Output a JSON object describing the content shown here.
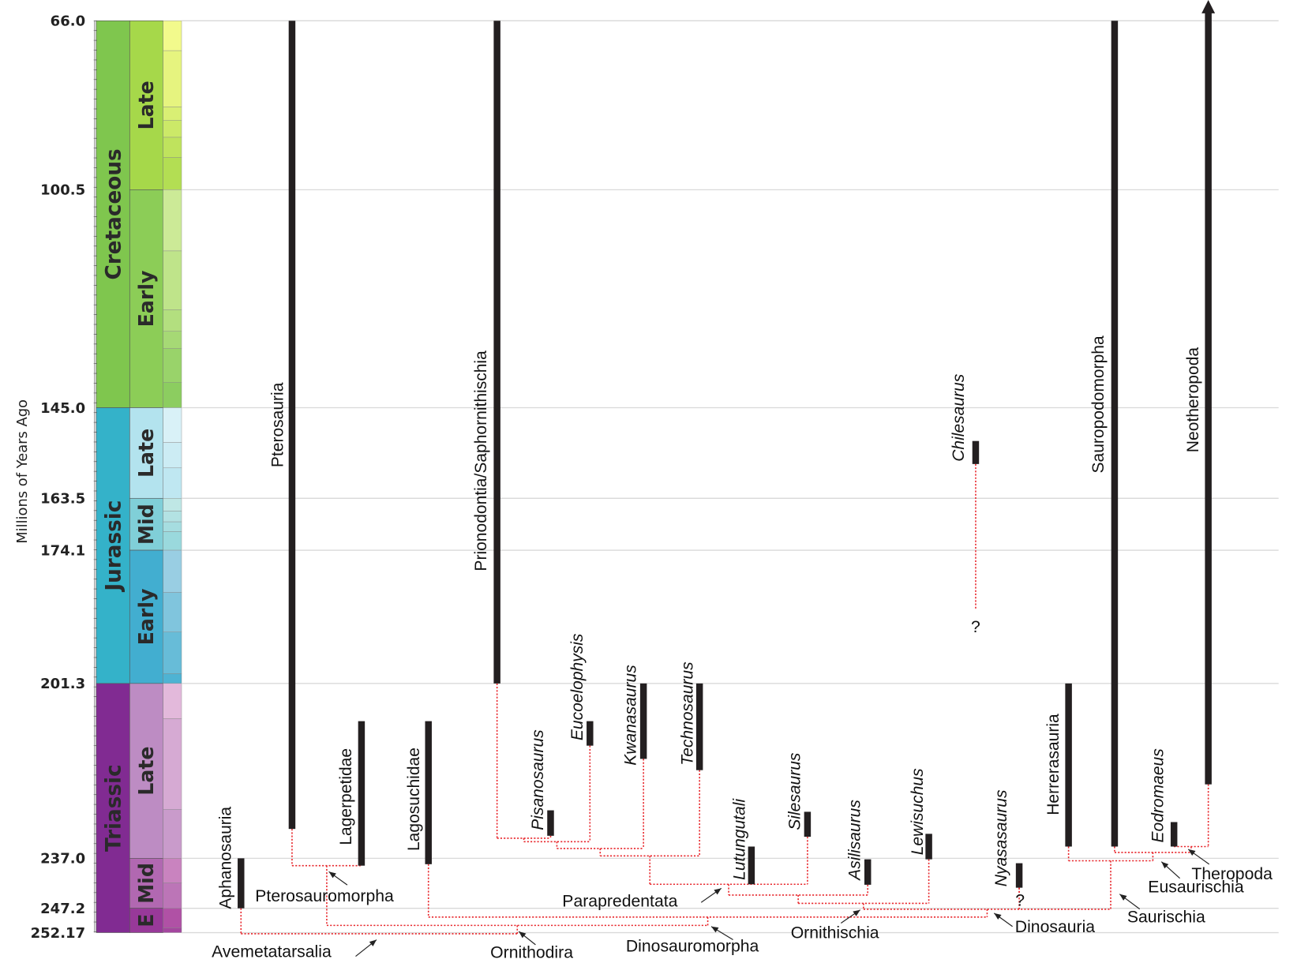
{
  "chart_data": {
    "type": "time-calibrated phylogeny",
    "ylabel": "Millions of Years Ago",
    "yticks": [
      "66.0",
      "100.5",
      "145.0",
      "163.5",
      "174.1",
      "201.3",
      "237.0",
      "247.2",
      "252.17"
    ],
    "ytick_values": [
      66.0,
      100.5,
      145.0,
      163.5,
      174.1,
      201.3,
      237.0,
      247.2,
      252.17
    ],
    "ylim": [
      66.0,
      252.17
    ],
    "grid": true,
    "colors": {
      "range_bar": "#231f20",
      "tree_line": "#e8262b",
      "grid": "#d9d9d9"
    },
    "timescale": {
      "periods": [
        {
          "label": "Cretaceous",
          "start": 145.0,
          "end": 66.0,
          "color": "#7FC64E"
        },
        {
          "label": "Jurassic",
          "start": 201.3,
          "end": 145.0,
          "color": "#34B2C9"
        },
        {
          "label": "Triassic",
          "start": 252.17,
          "end": 201.3,
          "color": "#812B92"
        }
      ],
      "epochs": [
        {
          "label": "Late",
          "start": 100.5,
          "end": 66.0,
          "color": "#A6D84A"
        },
        {
          "label": "Early",
          "start": 145.0,
          "end": 100.5,
          "color": "#8CCD57"
        },
        {
          "label": "Late",
          "start": 163.5,
          "end": 145.0,
          "color": "#B3E3EE"
        },
        {
          "label": "Mid",
          "start": 174.1,
          "end": 163.5,
          "color": "#80CFD8"
        },
        {
          "label": "Early",
          "start": 201.3,
          "end": 174.1,
          "color": "#42AED0"
        },
        {
          "label": "Late",
          "start": 237.0,
          "end": 201.3,
          "color": "#BD8CC3"
        },
        {
          "label": "Mid",
          "start": 247.2,
          "end": 237.0,
          "color": "#B168B1"
        },
        {
          "label": "E",
          "start": 252.17,
          "end": 247.2,
          "color": "#983999"
        }
      ],
      "stages": [
        {
          "start": 72.1,
          "end": 66.0,
          "color": "#F2FA8C"
        },
        {
          "start": 83.6,
          "end": 72.1,
          "color": "#E6F47F"
        },
        {
          "start": 86.3,
          "end": 83.6,
          "color": "#D9EF74"
        },
        {
          "start": 89.8,
          "end": 86.3,
          "color": "#CCE968"
        },
        {
          "start": 93.9,
          "end": 89.8,
          "color": "#BFE35D"
        },
        {
          "start": 100.5,
          "end": 93.9,
          "color": "#B3DE53"
        },
        {
          "start": 113.0,
          "end": 100.5,
          "color": "#CCEA97"
        },
        {
          "start": 125.0,
          "end": 113.0,
          "color": "#BFE48A"
        },
        {
          "start": 129.4,
          "end": 125.0,
          "color": "#B3DF7F"
        },
        {
          "start": 132.9,
          "end": 129.4,
          "color": "#A6D975"
        },
        {
          "start": 139.8,
          "end": 132.9,
          "color": "#99D36A"
        },
        {
          "start": 145.0,
          "end": 139.8,
          "color": "#8CCD60"
        },
        {
          "start": 152.1,
          "end": 145.0,
          "color": "#D9F1F7"
        },
        {
          "start": 157.3,
          "end": 152.1,
          "color": "#CCECF4"
        },
        {
          "start": 163.5,
          "end": 157.3,
          "color": "#BFE7F1"
        },
        {
          "start": 166.1,
          "end": 163.5,
          "color": "#BFE7E5"
        },
        {
          "start": 168.3,
          "end": 166.1,
          "color": "#B3E2E3"
        },
        {
          "start": 170.3,
          "end": 168.3,
          "color": "#A6DDE0"
        },
        {
          "start": 174.1,
          "end": 170.3,
          "color": "#9AD9DD"
        },
        {
          "start": 182.7,
          "end": 174.1,
          "color": "#99CEE3"
        },
        {
          "start": 190.8,
          "end": 182.7,
          "color": "#80C5DD"
        },
        {
          "start": 199.3,
          "end": 190.8,
          "color": "#67BCD8"
        },
        {
          "start": 201.3,
          "end": 199.3,
          "color": "#4EB3D3"
        },
        {
          "start": 208.5,
          "end": 201.3,
          "color": "#E3B9DB"
        },
        {
          "start": 227.0,
          "end": 208.5,
          "color": "#D6AAD3"
        },
        {
          "start": 237.0,
          "end": 227.0,
          "color": "#C99BCB"
        },
        {
          "start": 242.0,
          "end": 237.0,
          "color": "#C983BF"
        },
        {
          "start": 247.2,
          "end": 242.0,
          "color": "#BC75B7"
        },
        {
          "start": 251.2,
          "end": 247.2,
          "color": "#B051A5"
        },
        {
          "start": 252.17,
          "end": 251.2,
          "color": "#A4469F"
        }
      ]
    },
    "taxa": [
      {
        "id": "aphanosauria",
        "name": "Aphanosauria",
        "italic": false,
        "range": [
          247.2,
          237.0
        ]
      },
      {
        "id": "pterosauria",
        "name": "Pterosauria",
        "italic": false,
        "range": [
          231.0,
          66.0
        ]
      },
      {
        "id": "lagerpetidae",
        "name": "Lagerpetidae",
        "italic": false,
        "range": [
          238.5,
          209.0
        ]
      },
      {
        "id": "lagosuchidae",
        "name": "Lagosuchidae",
        "italic": false,
        "range": [
          238.2,
          209.0
        ]
      },
      {
        "id": "prionodontia",
        "name": "Prionodontia/Saphornithischia",
        "italic": false,
        "range": [
          201.3,
          66.0
        ]
      },
      {
        "id": "pisanosaurus",
        "name": "Pisanosaurus",
        "italic": true,
        "range": [
          232.4,
          227.2
        ]
      },
      {
        "id": "eucoelophysis",
        "name": "Eucoelophysis",
        "italic": true,
        "range": [
          214.0,
          209.0
        ]
      },
      {
        "id": "kwanasaurus",
        "name": "Kwanasaurus",
        "italic": true,
        "range": [
          216.7,
          201.3
        ]
      },
      {
        "id": "technosaurus",
        "name": "Technosaurus",
        "italic": true,
        "range": [
          219.0,
          201.3
        ]
      },
      {
        "id": "lutungutali",
        "name": "Lutungutali",
        "italic": true,
        "range": [
          242.3,
          234.6
        ]
      },
      {
        "id": "silesaurus",
        "name": "Silesaurus",
        "italic": true,
        "range": [
          232.6,
          227.5
        ]
      },
      {
        "id": "asilisaurus",
        "name": "Asilisaurus",
        "italic": true,
        "range": [
          242.4,
          237.2
        ]
      },
      {
        "id": "lewisuchus",
        "name": "Lewisuchus",
        "italic": true,
        "range": [
          237.2,
          232.0
        ]
      },
      {
        "id": "chilesaurus",
        "name": "Chilesaurus",
        "italic": true,
        "range": [
          156.5,
          151.8
        ],
        "uncertain_extension_to": 186.3,
        "question": "?"
      },
      {
        "id": "nyasasaurus",
        "name": "Nyasasaurus",
        "italic": true,
        "range": [
          243.0,
          238.0
        ],
        "question": "?"
      },
      {
        "id": "herrerasauria",
        "name": "Herrerasauria",
        "italic": false,
        "range": [
          234.6,
          201.3
        ]
      },
      {
        "id": "sauropodomorpha",
        "name": "Sauropodomorpha",
        "italic": false,
        "range": [
          234.6,
          66.0
        ]
      },
      {
        "id": "eodromaeus",
        "name": "Eodromaeus",
        "italic": true,
        "range": [
          234.6,
          229.6
        ]
      },
      {
        "id": "neotheropoda",
        "name": "Neotheropoda",
        "italic": false,
        "range": [
          221.9,
          66.0
        ],
        "extends_to_present": true
      }
    ],
    "nodes": [
      {
        "id": "n1",
        "name": "",
        "age": 232.9,
        "children": [
          "prionodontia",
          "pisanosaurus"
        ]
      },
      {
        "id": "n2",
        "name": "",
        "age": 233.6,
        "children": [
          "n1",
          "eucoelophysis"
        ]
      },
      {
        "id": "n3",
        "name": "",
        "age": 235.0,
        "children": [
          "n2",
          "kwanasaurus"
        ]
      },
      {
        "id": "n4",
        "name": "",
        "age": 236.5,
        "children": [
          "n3",
          "technosaurus"
        ]
      },
      {
        "id": "parapredentata",
        "name": "Parapredentata",
        "age": 242.3,
        "children": [
          "n4",
          "lutungutali",
          "silesaurus"
        ]
      },
      {
        "id": "n6",
        "name": "",
        "age": 244.5,
        "children": [
          "parapredentata",
          "asilisaurus"
        ]
      },
      {
        "id": "ornithischia",
        "name": "Ornithischia",
        "age": 246.2,
        "children": [
          "n6",
          "lewisuchus"
        ]
      },
      {
        "id": "theropoda",
        "name": "Theropoda",
        "age": 234.6,
        "children": [
          "eodromaeus",
          "neotheropoda"
        ]
      },
      {
        "id": "eusaurischia",
        "name": "Eusaurischia",
        "age": 235.8,
        "children": [
          "sauropodomorpha",
          "theropoda"
        ]
      },
      {
        "id": "saurischia",
        "name": "Saurischia",
        "age": 237.5,
        "children": [
          "herrerasauria",
          "eusaurischia"
        ]
      },
      {
        "id": "dinosauria",
        "name": "Dinosauria",
        "age": 247.4,
        "children": [
          "ornithischia",
          "nyasasaurus",
          "saurischia"
        ]
      },
      {
        "id": "dinosauromorpha",
        "name": "Dinosauromorpha",
        "age": 249.0,
        "children": [
          "lagosuchidae",
          "dinosauria"
        ]
      },
      {
        "id": "pterosauromorpha",
        "name": "Pterosauromorpha",
        "age": 238.5,
        "children": [
          "pterosauria",
          "lagerpetidae"
        ]
      },
      {
        "id": "ornithodira",
        "name": "Ornithodira",
        "age": 250.7,
        "children": [
          "pterosauromorpha",
          "dinosauromorpha"
        ]
      },
      {
        "id": "avemetatarsalia",
        "name": "Avemetatarsalia",
        "age": 252.4,
        "children": [
          "aphanosauria",
          "ornithodira"
        ]
      }
    ]
  }
}
